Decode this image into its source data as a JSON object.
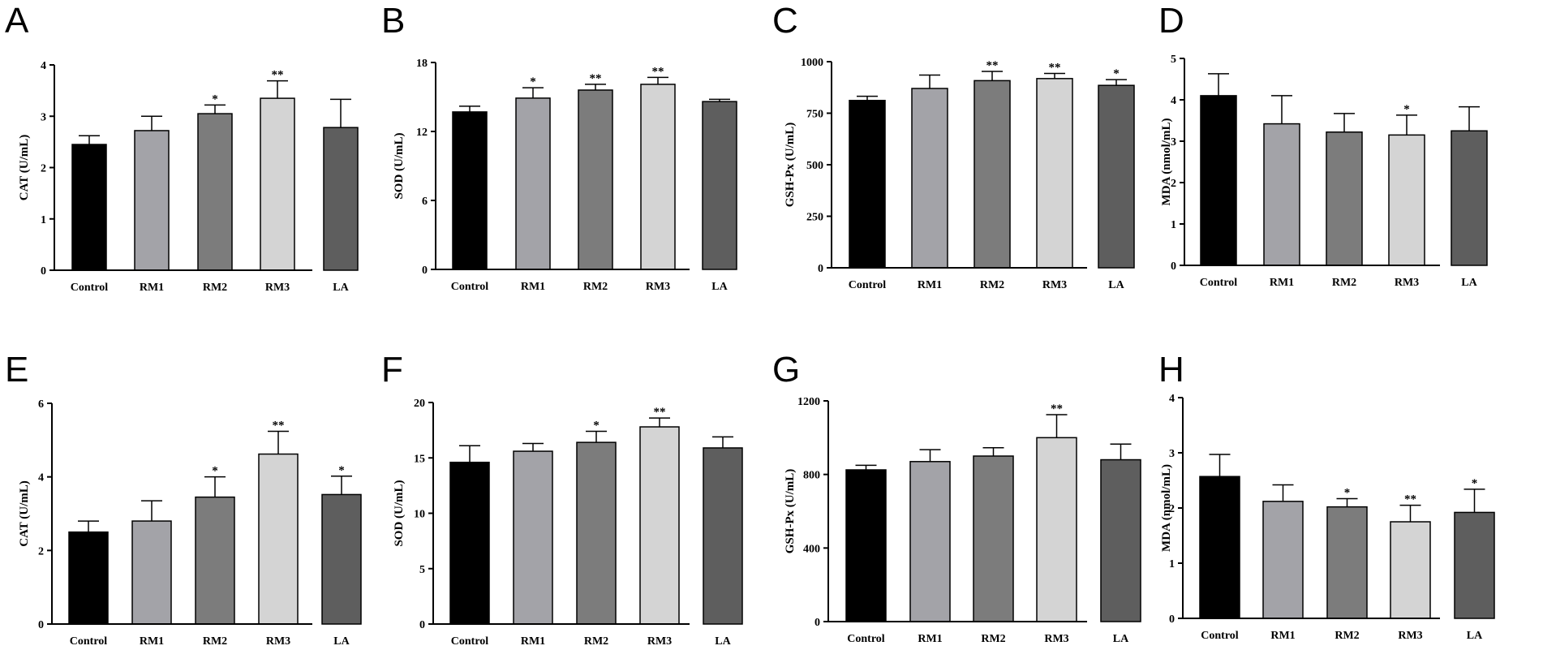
{
  "figure": {
    "colors": [
      "#000000",
      "#a3a3a8",
      "#7c7c7c",
      "#d4d4d4",
      "#5e5e5e"
    ]
  },
  "chart_data": [
    {
      "type": "bar",
      "panel": "A",
      "ylabel": "CAT (U/mL)",
      "categories": [
        "Control",
        "RM1",
        "RM2",
        "RM3",
        "LA"
      ],
      "ylim": [
        0,
        4
      ],
      "yticks": [
        0,
        1,
        2,
        3,
        4
      ],
      "values": [
        2.45,
        2.72,
        3.05,
        3.35,
        2.78
      ],
      "errors": [
        0.17,
        0.28,
        0.17,
        0.34,
        0.55
      ],
      "significance": [
        "",
        "",
        "*",
        "**",
        ""
      ]
    },
    {
      "type": "bar",
      "panel": "B",
      "ylabel": "SOD (U/mL)",
      "categories": [
        "Control",
        "RM1",
        "RM2",
        "RM3",
        "LA"
      ],
      "ylim": [
        0,
        18
      ],
      "yticks": [
        0,
        6,
        12,
        18
      ],
      "values": [
        13.7,
        14.9,
        15.6,
        16.1,
        14.6
      ],
      "errors": [
        0.5,
        0.9,
        0.5,
        0.6,
        0.2
      ],
      "significance": [
        "",
        "*",
        "**",
        "**",
        ""
      ]
    },
    {
      "type": "bar",
      "panel": "C",
      "ylabel": "GSH-Px (U/mL)",
      "categories": [
        "Control",
        "RM1",
        "RM2",
        "RM3",
        "LA"
      ],
      "ylim": [
        0,
        1000
      ],
      "yticks": [
        0,
        250,
        500,
        750,
        1000
      ],
      "values": [
        812,
        870,
        908,
        918,
        885
      ],
      "errors": [
        20,
        65,
        45,
        25,
        28
      ],
      "significance": [
        "",
        "",
        "**",
        "**",
        "*"
      ]
    },
    {
      "type": "bar",
      "panel": "D",
      "ylabel": "MDA (nmol/mL)",
      "categories": [
        "Control",
        "RM1",
        "RM2",
        "RM3",
        "LA"
      ],
      "ylim": [
        0,
        5
      ],
      "yticks": [
        0,
        1,
        2,
        3,
        4,
        5
      ],
      "values": [
        4.1,
        3.42,
        3.22,
        3.15,
        3.25
      ],
      "errors": [
        0.53,
        0.68,
        0.45,
        0.48,
        0.58
      ],
      "significance": [
        "",
        "",
        "",
        "*",
        ""
      ]
    },
    {
      "type": "bar",
      "panel": "E",
      "ylabel": "CAT (U/mL)",
      "categories": [
        "Control",
        "RM1",
        "RM2",
        "RM3",
        "LA"
      ],
      "ylim": [
        0,
        6
      ],
      "yticks": [
        0,
        2,
        4,
        6
      ],
      "values": [
        2.5,
        2.8,
        3.45,
        4.62,
        3.52
      ],
      "errors": [
        0.3,
        0.55,
        0.55,
        0.62,
        0.5
      ],
      "significance": [
        "",
        "",
        "*",
        "**",
        "*"
      ]
    },
    {
      "type": "bar",
      "panel": "F",
      "ylabel": "SOD (U/mL)",
      "categories": [
        "Control",
        "RM1",
        "RM2",
        "RM3",
        "LA"
      ],
      "ylim": [
        0,
        20
      ],
      "yticks": [
        0,
        5,
        10,
        15,
        20
      ],
      "values": [
        14.6,
        15.6,
        16.4,
        17.8,
        15.9
      ],
      "errors": [
        1.5,
        0.7,
        1.0,
        0.8,
        1.0
      ],
      "significance": [
        "",
        "",
        "*",
        "**",
        ""
      ]
    },
    {
      "type": "bar",
      "panel": "G",
      "ylabel": "GSH-Px  (U/mL)",
      "categories": [
        "Control",
        "RM1",
        "RM2",
        "RM3",
        "LA"
      ],
      "ylim": [
        0,
        1200
      ],
      "yticks": [
        0,
        400,
        800,
        1200
      ],
      "values": [
        825,
        870,
        900,
        1000,
        880
      ],
      "errors": [
        25,
        65,
        45,
        125,
        85
      ],
      "significance": [
        "",
        "",
        "",
        "**",
        ""
      ]
    },
    {
      "type": "bar",
      "panel": "H",
      "ylabel": "MDA (nmol/mL)",
      "categories": [
        "Control",
        "RM1",
        "RM2",
        "RM3",
        "LA"
      ],
      "ylim": [
        0,
        4
      ],
      "yticks": [
        0,
        1,
        2,
        3,
        4
      ],
      "values": [
        2.57,
        2.12,
        2.02,
        1.75,
        1.92
      ],
      "errors": [
        0.4,
        0.3,
        0.15,
        0.3,
        0.42
      ],
      "significance": [
        "",
        "",
        "*",
        "**",
        "*"
      ]
    }
  ]
}
